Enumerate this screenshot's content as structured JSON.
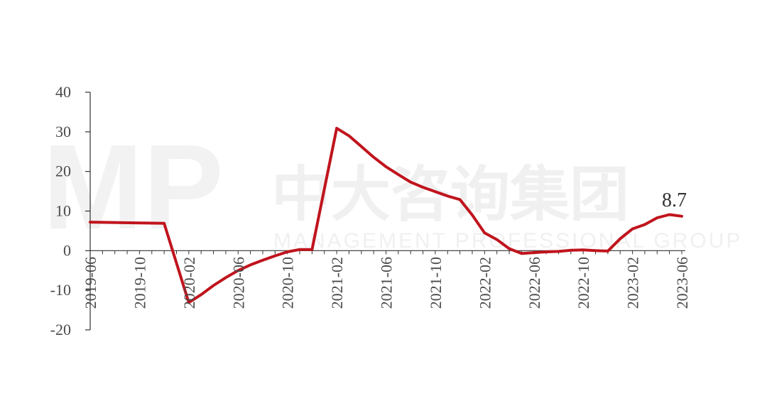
{
  "watermark": {
    "logo": "MP",
    "cn_text": "中大咨询集团",
    "en_text": "MANAGEMENT PROFESSIONAL GROUP"
  },
  "chart_data": {
    "type": "line",
    "title": "",
    "xlabel": "",
    "ylabel": "",
    "ylim": [
      -20,
      40
    ],
    "yticks": [
      40,
      30,
      20,
      10,
      0,
      -10,
      -20
    ],
    "xtick_labels": [
      "2019-06",
      "2019-10",
      "2020-02",
      "2020-06",
      "2020-10",
      "2021-02",
      "2021-06",
      "2021-10",
      "2022-02",
      "2022-06",
      "2022-10",
      "2023-02",
      "2023-06"
    ],
    "grid": false,
    "line_color": "#c0141d",
    "months": [
      "2019-06",
      "2019-07",
      "2019-08",
      "2019-09",
      "2019-10",
      "2019-11",
      "2019-12",
      "2020-01",
      "2020-02",
      "2020-03",
      "2020-04",
      "2020-05",
      "2020-06",
      "2020-07",
      "2020-08",
      "2020-09",
      "2020-10",
      "2020-11",
      "2020-12",
      "2021-01",
      "2021-02",
      "2021-03",
      "2021-04",
      "2021-05",
      "2021-06",
      "2021-07",
      "2021-08",
      "2021-09",
      "2021-10",
      "2021-11",
      "2021-12",
      "2022-01",
      "2022-02",
      "2022-03",
      "2022-04",
      "2022-05",
      "2022-06",
      "2022-07",
      "2022-08",
      "2022-09",
      "2022-10",
      "2022-11",
      "2022-12",
      "2023-01",
      "2023-02",
      "2023-03",
      "2023-04",
      "2023-05",
      "2023-06"
    ],
    "series": [
      {
        "x": [
          "2019-06",
          "2019-10",
          "2019-12",
          "2020-02",
          "2020-03",
          "2020-04",
          "2020-05",
          "2020-06",
          "2020-07",
          "2020-08",
          "2020-09",
          "2020-10",
          "2020-11",
          "2020-12",
          "2021-02",
          "2021-03",
          "2021-04",
          "2021-05",
          "2021-06",
          "2021-07",
          "2021-08",
          "2021-09",
          "2021-10",
          "2021-11",
          "2021-12",
          "2022-01",
          "2022-02",
          "2022-03",
          "2022-04",
          "2022-05",
          "2022-06",
          "2022-07",
          "2022-08",
          "2022-09",
          "2022-10",
          "2022-11",
          "2022-12",
          "2023-01",
          "2023-02",
          "2023-03",
          "2023-04",
          "2023-05",
          "2023-06"
        ],
        "values": [
          7.2,
          7.0,
          6.9,
          -13.1,
          -11.1,
          -8.8,
          -6.8,
          -5.0,
          -3.6,
          -2.4,
          -1.3,
          -0.3,
          0.3,
          0.3,
          30.9,
          29.0,
          26.3,
          23.6,
          21.2,
          19.2,
          17.3,
          16.0,
          14.9,
          13.8,
          12.9,
          9.0,
          4.5,
          2.8,
          0.5,
          -0.7,
          -0.5,
          -0.3,
          -0.2,
          0.1,
          0.2,
          0.0,
          -0.1,
          3.0,
          5.5,
          6.6,
          8.3,
          9.1,
          8.7
        ]
      }
    ],
    "annotations": [
      {
        "text": "8.7",
        "x": "2023-06",
        "y": 8.7
      }
    ]
  }
}
